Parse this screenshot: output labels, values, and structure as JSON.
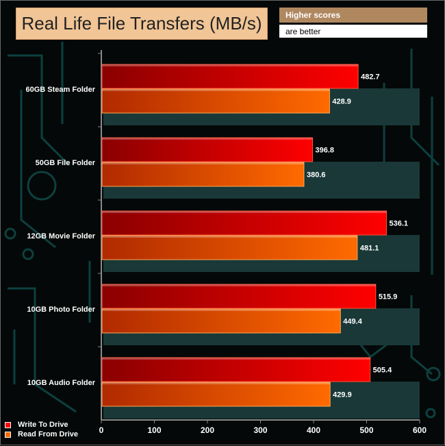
{
  "title": "Real Life File Transfers (MB/s)",
  "note_line1": "Higher scores",
  "note_line2": "are better",
  "colors": {
    "write": "#ff0000",
    "write_dark": "#8a0000",
    "read": "#ff6a00",
    "read_dark": "#b02a00",
    "title_bg": "#f1c596",
    "note_bg": "#b08860"
  },
  "chart_data": {
    "type": "bar",
    "orientation": "horizontal",
    "title": "Real Life File Transfers (MB/s)",
    "categories": [
      "60GB Steam Folder",
      "50GB File Folder",
      "12GB Movie Folder",
      "10GB Photo Folder",
      "10GB Audio Folder"
    ],
    "series": [
      {
        "name": "Write To  Drive",
        "values": [
          482.7,
          396.8,
          536.1,
          515.9,
          505.4
        ]
      },
      {
        "name": "Read From  Drive",
        "values": [
          428.9,
          380.6,
          481.1,
          449.4,
          429.9
        ]
      }
    ],
    "xlim": [
      0,
      600
    ],
    "xticks": [
      "0",
      "100",
      "200",
      "300",
      "400",
      "500",
      "600"
    ],
    "legend_position": "bottom-left"
  }
}
